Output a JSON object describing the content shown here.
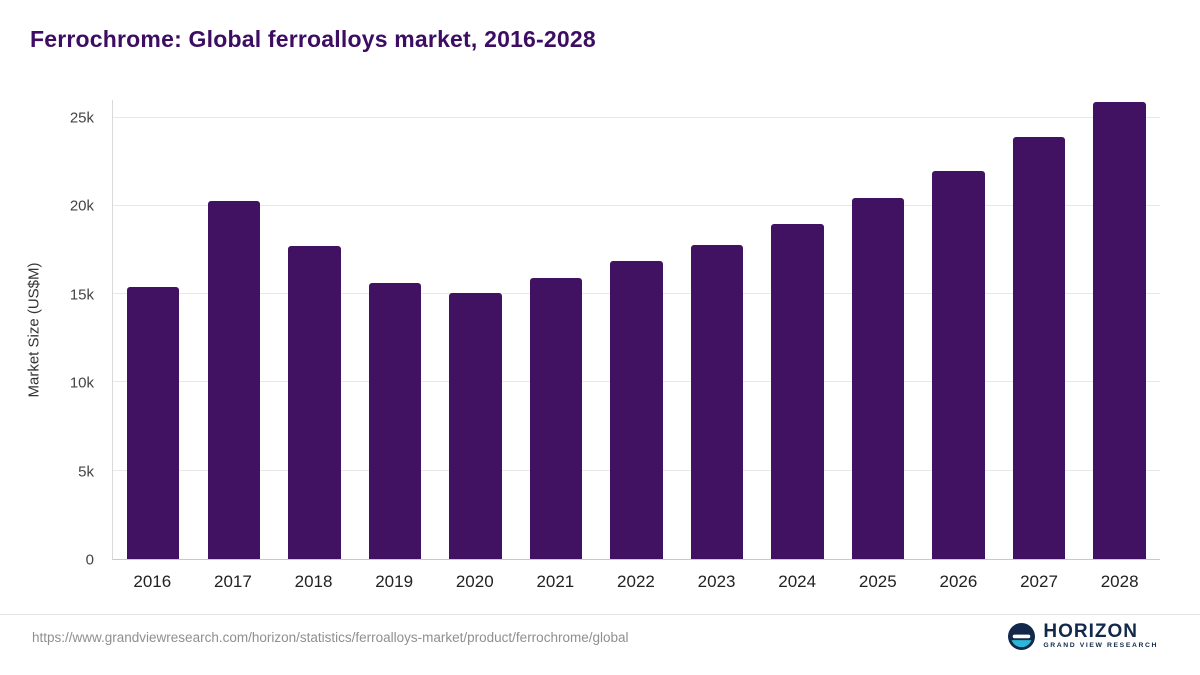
{
  "page": {
    "title": "Ferrochrome: Global ferroalloys market, 2016-2028"
  },
  "chart_data": {
    "type": "bar",
    "title": "Ferrochrome: Global ferroalloys market, 2016-2028",
    "categories": [
      "2016",
      "2017",
      "2018",
      "2019",
      "2020",
      "2021",
      "2022",
      "2023",
      "2024",
      "2025",
      "2026",
      "2027",
      "2028"
    ],
    "values": [
      15400,
      20300,
      17750,
      15650,
      15050,
      15900,
      16900,
      17800,
      19000,
      20450,
      22000,
      23900,
      25900
    ],
    "xlabel": "",
    "ylabel": "Market Size (US$M)",
    "ylim": [
      0,
      26000
    ],
    "yticks": [
      {
        "value": 0,
        "label": "0"
      },
      {
        "value": 5000,
        "label": "5k"
      },
      {
        "value": 10000,
        "label": "10k"
      },
      {
        "value": 15000,
        "label": "15k"
      },
      {
        "value": 20000,
        "label": "20k"
      },
      {
        "value": 25000,
        "label": "25k"
      }
    ],
    "bar_color": "#411262",
    "grid": true,
    "legend": "none"
  },
  "footer": {
    "source_url": "https://www.grandviewresearch.com/horizon/statistics/ferroalloys-market/product/ferrochrome/global",
    "logo_title": "HORIZON",
    "logo_subtitle": "GRAND VIEW RESEARCH"
  },
  "colors": {
    "title": "#3d0d63",
    "bar": "#411262",
    "logo_navy": "#13294b",
    "logo_teal": "#2cb7d8"
  }
}
